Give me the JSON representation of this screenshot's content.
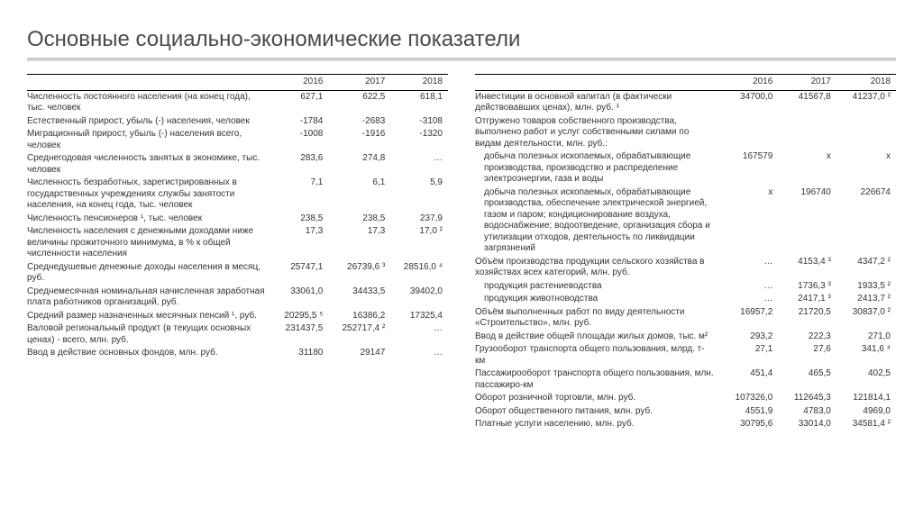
{
  "title": "Основные социально-экономические показатели",
  "years": [
    "2016",
    "2017",
    "2018"
  ],
  "left": [
    {
      "label": "Численность постоянного населения (на конец года), тыс. человек",
      "v": [
        "627,1",
        "622,5",
        "618,1"
      ]
    },
    {
      "label": "Естественный прирост, убыль (-) населения, человек",
      "v": [
        "-1784",
        "-2683",
        "-3108"
      ]
    },
    {
      "label": "Миграционный прирост, убыль (-) населения всего, человек",
      "v": [
        "-1008",
        "-1916",
        "-1320"
      ]
    },
    {
      "label": "Среднегодовая численность занятых в экономике, тыс. человек",
      "v": [
        "283,6",
        "274,8",
        "…"
      ]
    },
    {
      "label": "Численность безработных, зарегистрированных в государственных учреждениях службы занятости населения, на конец года, тыс. человек",
      "v": [
        "7,1",
        "6,1",
        "5,9"
      ]
    },
    {
      "label": "Численность пенсионеров ¹, тыс. человек",
      "v": [
        "238,5",
        "238,5",
        "237,9"
      ]
    },
    {
      "label": "Численность населения с денежными доходами ниже величины прожиточного минимума, в % к общей численности населения",
      "v": [
        "17,3",
        "17,3",
        "17,0 ²"
      ]
    },
    {
      "label": "Среднедушевые денежные доходы населения в месяц, руб.",
      "v": [
        "25747,1",
        "26739,6 ³",
        "28516,0 ⁴"
      ]
    },
    {
      "label": "Среднемесячная номинальная начисленная заработная плата работников организаций, руб.",
      "v": [
        "33061,0",
        "34433,5",
        "39402,0"
      ]
    },
    {
      "label": "Средний размер назначенных месячных пенсий ¹, руб.",
      "v": [
        "20295,5 ⁵",
        "16386,2",
        "17325,4"
      ]
    },
    {
      "label": "Валовой региональный продукт (в текущих основных ценах) - всего, млн. руб.",
      "v": [
        "231437,5",
        "252717,4 ²",
        "…"
      ]
    },
    {
      "label": "Ввод в действие основных фондов, млн. руб.",
      "v": [
        "31180",
        "29147",
        "…"
      ]
    }
  ],
  "right": [
    {
      "label": "Инвестиции в основной капитал (в фактически действовавших ценах), млн. руб. ¹",
      "v": [
        "34700,0",
        "41567,8",
        "41237,0 ²"
      ]
    },
    {
      "label": "Отгружено товаров собственного производства, выполнено работ и услуг собственными силами по видам деятельности, млн. руб.:",
      "v": [
        "",
        "",
        ""
      ]
    },
    {
      "label": "добыча полезных ископаемых, обрабатывающие производства, производство и распределение электроэнергии, газа и воды",
      "indent": 1,
      "v": [
        "167579",
        "х",
        "х"
      ]
    },
    {
      "label": "добыча полезных ископаемых, обрабатывающие производства, обеспечение электрической энергией, газом и паром; кондиционирование воздуха, водоснабжение; водоотведение, организация сбора и утилизации отходов, деятельность по ликвидации загрязнений",
      "indent": 1,
      "v": [
        "х",
        "196740",
        "226674"
      ]
    },
    {
      "label": "Объём производства продукции сельского хозяйства в хозяйствах всех категорий, млн. руб.",
      "v": [
        "…",
        "4153,4 ³",
        "4347,2 ²"
      ]
    },
    {
      "label": "продукция растениеводства",
      "indent": 1,
      "v": [
        "…",
        "1736,3 ³",
        "1933,5 ²"
      ]
    },
    {
      "label": "продукция животноводства",
      "indent": 1,
      "v": [
        "…",
        "2417,1 ³",
        "2413,7 ²"
      ]
    },
    {
      "label": "Объём выполненных работ по виду деятельности «Строительство», млн. руб.",
      "v": [
        "16957,2",
        "21720,5",
        "30837,0 ²"
      ]
    },
    {
      "label": "Ввод в действие общей площади жилых домов, тыс. м²",
      "v": [
        "293,2",
        "222,3",
        "271,0"
      ]
    },
    {
      "label": "Грузооборот транспорта общего пользования, млрд. т-км",
      "v": [
        "27,1",
        "27,6",
        "341,6 ⁴"
      ]
    },
    {
      "label": "Пассажирооборот транспорта общего пользования, млн. пассажиро-км",
      "v": [
        "451,4",
        "465,5",
        "402,5"
      ]
    },
    {
      "label": "Оборот розничной торговли, млн. руб.",
      "v": [
        "107326,0",
        "112645,3",
        "121814,1"
      ]
    },
    {
      "label": "Оборот общественного питания, млн. руб.",
      "v": [
        "4551,9",
        "4783,0",
        "4969,0"
      ]
    },
    {
      "label": "Платные услуги населению, млн. руб.",
      "v": [
        "30795,6",
        "33014,0",
        "34581,4 ²"
      ]
    }
  ]
}
